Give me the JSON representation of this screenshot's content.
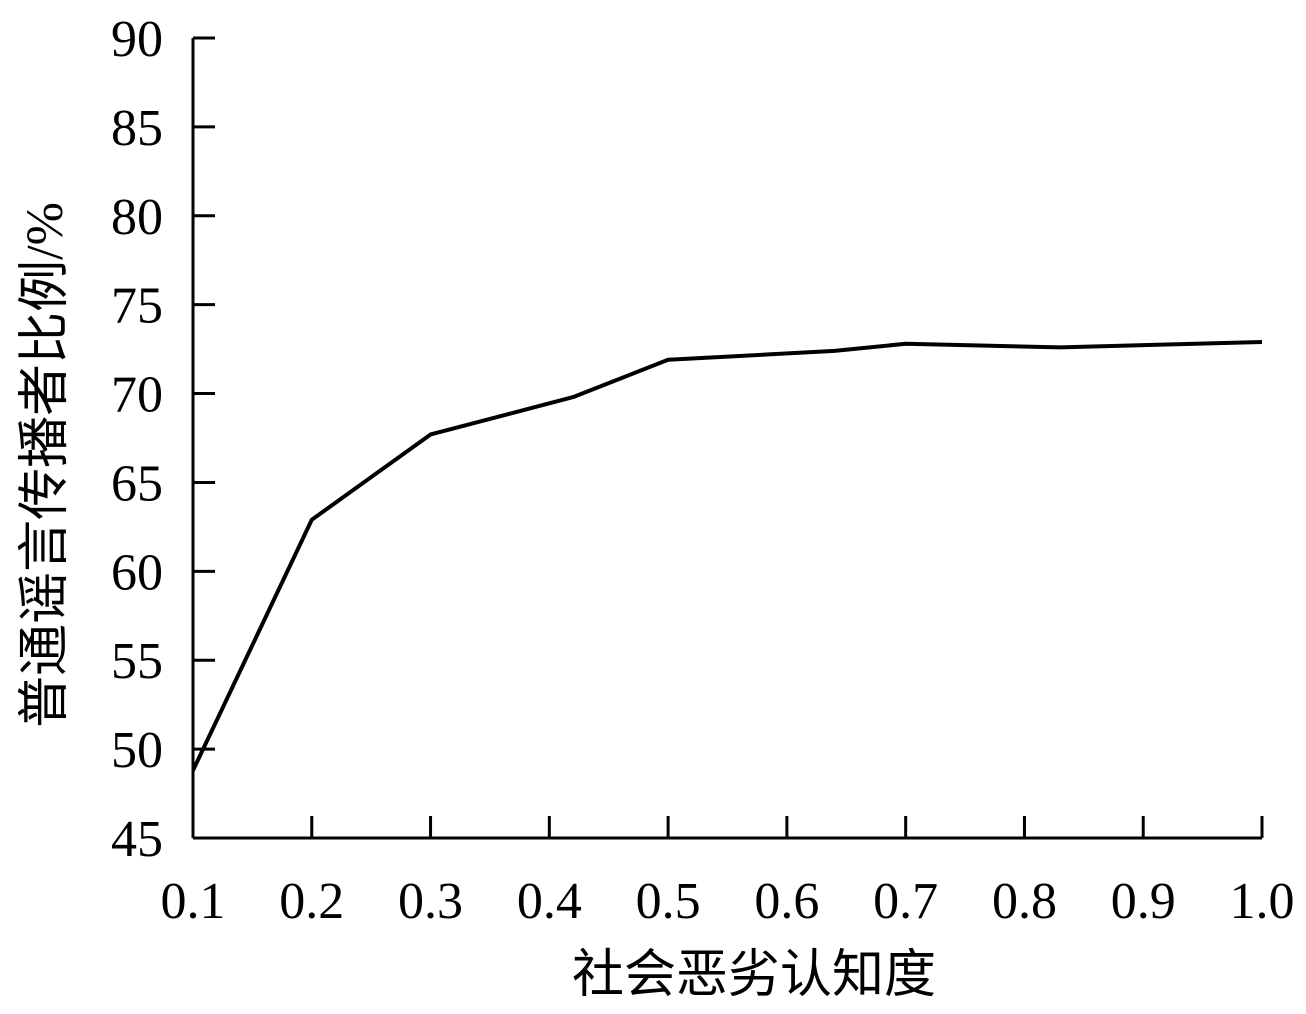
{
  "chart_data": {
    "type": "line",
    "x_label": "社会恶劣认知度",
    "y_label": "普通谣言传播者比例/%",
    "series": [
      {
        "color": "#000000",
        "x": [
          0.1,
          0.2,
          0.3,
          0.42,
          0.5,
          0.64,
          0.7,
          0.83,
          1.0
        ],
        "values": [
          48.8,
          62.9,
          67.7,
          69.8,
          71.9,
          72.4,
          72.8,
          72.6,
          72.9
        ]
      }
    ],
    "xlim": [
      0.1,
      1.0
    ],
    "xticks": [
      0.1,
      0.2,
      0.3,
      0.4,
      0.5,
      0.6,
      0.7,
      0.8,
      0.9,
      {
        "value": 1.0,
        "label": "1.0"
      }
    ],
    "ylim": [
      45,
      90
    ],
    "yticks": [
      45,
      50,
      55,
      60,
      65,
      70,
      75,
      80,
      85,
      90
    ]
  }
}
